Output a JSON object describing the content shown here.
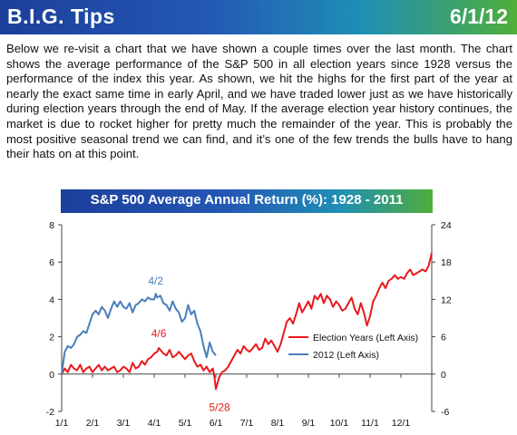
{
  "header": {
    "title": "B.I.G. Tips",
    "date": "6/1/12"
  },
  "body_text": "Below we re-visit a chart that we have shown a couple times over the last month.  The chart shows the average performance of the S&P 500 in all election years since 1928 versus the performance of the index this year.  As shown, we hit the highs for the first part of the year at nearly the exact same time in early April, and we have traded lower just as we have historically during election years through the end of May.  If the average election year history continues, the market is due to rocket higher for pretty much the remainder of the year.  This is probably the most positive seasonal trend we can find, and it’s one of the few trends the bulls have to hang their hats on at this point.",
  "colors": {
    "election": "#e8191d",
    "year2012": "#4a7ebb"
  },
  "chart_data": {
    "type": "line",
    "title": "S&P 500 Average Annual Return (%): 1928 - 2011",
    "x_tick_labels": [
      "1/1",
      "2/1",
      "3/1",
      "4/1",
      "5/1",
      "6/1",
      "7/1",
      "8/1",
      "9/1",
      "10/1",
      "11/1",
      "12/1"
    ],
    "left_axis": {
      "ylim": [
        -2,
        8
      ],
      "ticks": [
        "-2",
        "0",
        "2",
        "4",
        "6",
        "8"
      ]
    },
    "right_axis": {
      "ylim": [
        -6,
        24
      ],
      "ticks": [
        "-6",
        "0",
        "6",
        "12",
        "18",
        "24"
      ]
    },
    "grid": false,
    "legend_position": "center-right",
    "series": [
      {
        "name": "Election Years (Left Axis)",
        "axis": "left",
        "color": "#e8191d",
        "x_month": [
          0.0,
          0.1,
          0.2,
          0.3,
          0.4,
          0.5,
          0.6,
          0.7,
          0.8,
          0.9,
          1.0,
          1.1,
          1.2,
          1.3,
          1.4,
          1.5,
          1.6,
          1.7,
          1.8,
          1.9,
          2.0,
          2.1,
          2.2,
          2.3,
          2.4,
          2.5,
          2.6,
          2.7,
          2.8,
          2.9,
          3.0,
          3.1,
          3.15,
          3.2,
          3.3,
          3.4,
          3.5,
          3.6,
          3.7,
          3.8,
          3.9,
          4.0,
          4.1,
          4.2,
          4.3,
          4.4,
          4.5,
          4.6,
          4.7,
          4.8,
          4.9,
          4.95,
          5.0,
          5.1,
          5.2,
          5.3,
          5.4,
          5.5,
          5.6,
          5.7,
          5.8,
          5.9,
          6.0,
          6.1,
          6.2,
          6.3,
          6.4,
          6.5,
          6.6,
          6.7,
          6.8,
          6.9,
          7.0,
          7.1,
          7.2,
          7.3,
          7.4,
          7.5,
          7.6,
          7.7,
          7.8,
          7.9,
          8.0,
          8.1,
          8.2,
          8.3,
          8.4,
          8.5,
          8.6,
          8.7,
          8.8,
          8.9,
          9.0,
          9.1,
          9.2,
          9.3,
          9.4,
          9.5,
          9.6,
          9.7,
          9.8,
          9.9,
          10.0,
          10.1,
          10.2,
          10.3,
          10.4,
          10.5,
          10.6,
          10.7,
          10.8,
          10.9,
          11.0,
          11.1,
          11.2,
          11.3,
          11.4,
          11.5,
          11.6,
          11.7,
          11.8,
          11.9,
          12.0
        ],
        "values": [
          0.0,
          0.3,
          0.1,
          0.5,
          0.3,
          0.2,
          0.5,
          0.1,
          0.3,
          0.4,
          0.1,
          0.3,
          0.5,
          0.2,
          0.4,
          0.2,
          0.3,
          0.4,
          0.1,
          0.2,
          0.4,
          0.3,
          0.1,
          0.6,
          0.3,
          0.4,
          0.7,
          0.5,
          0.8,
          0.9,
          1.1,
          1.2,
          1.4,
          1.3,
          1.1,
          1.0,
          1.3,
          0.9,
          1.0,
          1.2,
          1.0,
          0.8,
          1.0,
          1.1,
          0.7,
          0.4,
          0.5,
          0.2,
          0.4,
          0.1,
          0.3,
          -0.1,
          -0.8,
          -0.2,
          0.1,
          0.2,
          0.4,
          0.7,
          1.0,
          1.3,
          1.1,
          1.5,
          1.3,
          1.2,
          1.4,
          1.6,
          1.3,
          1.4,
          1.9,
          1.6,
          1.8,
          1.5,
          1.2,
          1.6,
          2.2,
          2.8,
          3.0,
          2.7,
          3.2,
          3.8,
          3.3,
          3.6,
          3.9,
          3.5,
          4.2,
          4.0,
          4.3,
          3.8,
          4.2,
          4.0,
          3.6,
          3.9,
          3.7,
          3.4,
          3.5,
          3.8,
          4.1,
          3.5,
          3.2,
          3.8,
          3.3,
          2.6,
          3.1,
          3.9,
          4.2,
          4.6,
          4.9,
          4.6,
          5.0,
          5.1,
          5.3,
          5.1,
          5.2,
          5.1,
          5.4,
          5.6,
          5.3,
          5.4,
          5.5,
          5.6,
          5.5,
          5.8,
          6.5
        ]
      },
      {
        "name": "2012 (Left Axis)",
        "axis": "left",
        "color": "#4a7ebb",
        "x_month": [
          0.0,
          0.1,
          0.2,
          0.3,
          0.4,
          0.5,
          0.6,
          0.7,
          0.8,
          0.9,
          1.0,
          1.1,
          1.2,
          1.3,
          1.4,
          1.5,
          1.6,
          1.7,
          1.8,
          1.9,
          2.0,
          2.1,
          2.2,
          2.3,
          2.4,
          2.5,
          2.6,
          2.7,
          2.8,
          2.9,
          3.0,
          3.05,
          3.1,
          3.2,
          3.3,
          3.4,
          3.5,
          3.6,
          3.7,
          3.8,
          3.9,
          4.0,
          4.1,
          4.2,
          4.3,
          4.4,
          4.5,
          4.6,
          4.7,
          4.8,
          4.9,
          5.0
        ],
        "values": [
          0.0,
          1.2,
          1.5,
          1.4,
          1.6,
          2.0,
          2.1,
          2.3,
          2.2,
          2.7,
          3.2,
          3.4,
          3.2,
          3.6,
          3.4,
          3.0,
          3.5,
          3.9,
          3.6,
          3.9,
          3.6,
          3.5,
          3.8,
          3.3,
          3.7,
          3.8,
          4.0,
          3.9,
          4.1,
          4.0,
          4.0,
          4.3,
          4.1,
          4.2,
          3.8,
          3.7,
          3.4,
          3.9,
          3.5,
          3.3,
          2.8,
          3.0,
          3.7,
          3.2,
          3.4,
          2.7,
          2.3,
          1.5,
          0.9,
          1.7,
          1.2,
          1.0
        ]
      }
    ],
    "annotations": [
      {
        "text": "4/2",
        "series": "2012 (Left Axis)",
        "x_month": 3.05,
        "y": 4.3
      },
      {
        "text": "4/6",
        "series": "Election Years (Left Axis)",
        "x_month": 3.15,
        "y": 1.4
      },
      {
        "text": "5/28",
        "series": "Election Years (Left Axis)",
        "x_month": 5.0,
        "y": -0.8
      }
    ]
  }
}
